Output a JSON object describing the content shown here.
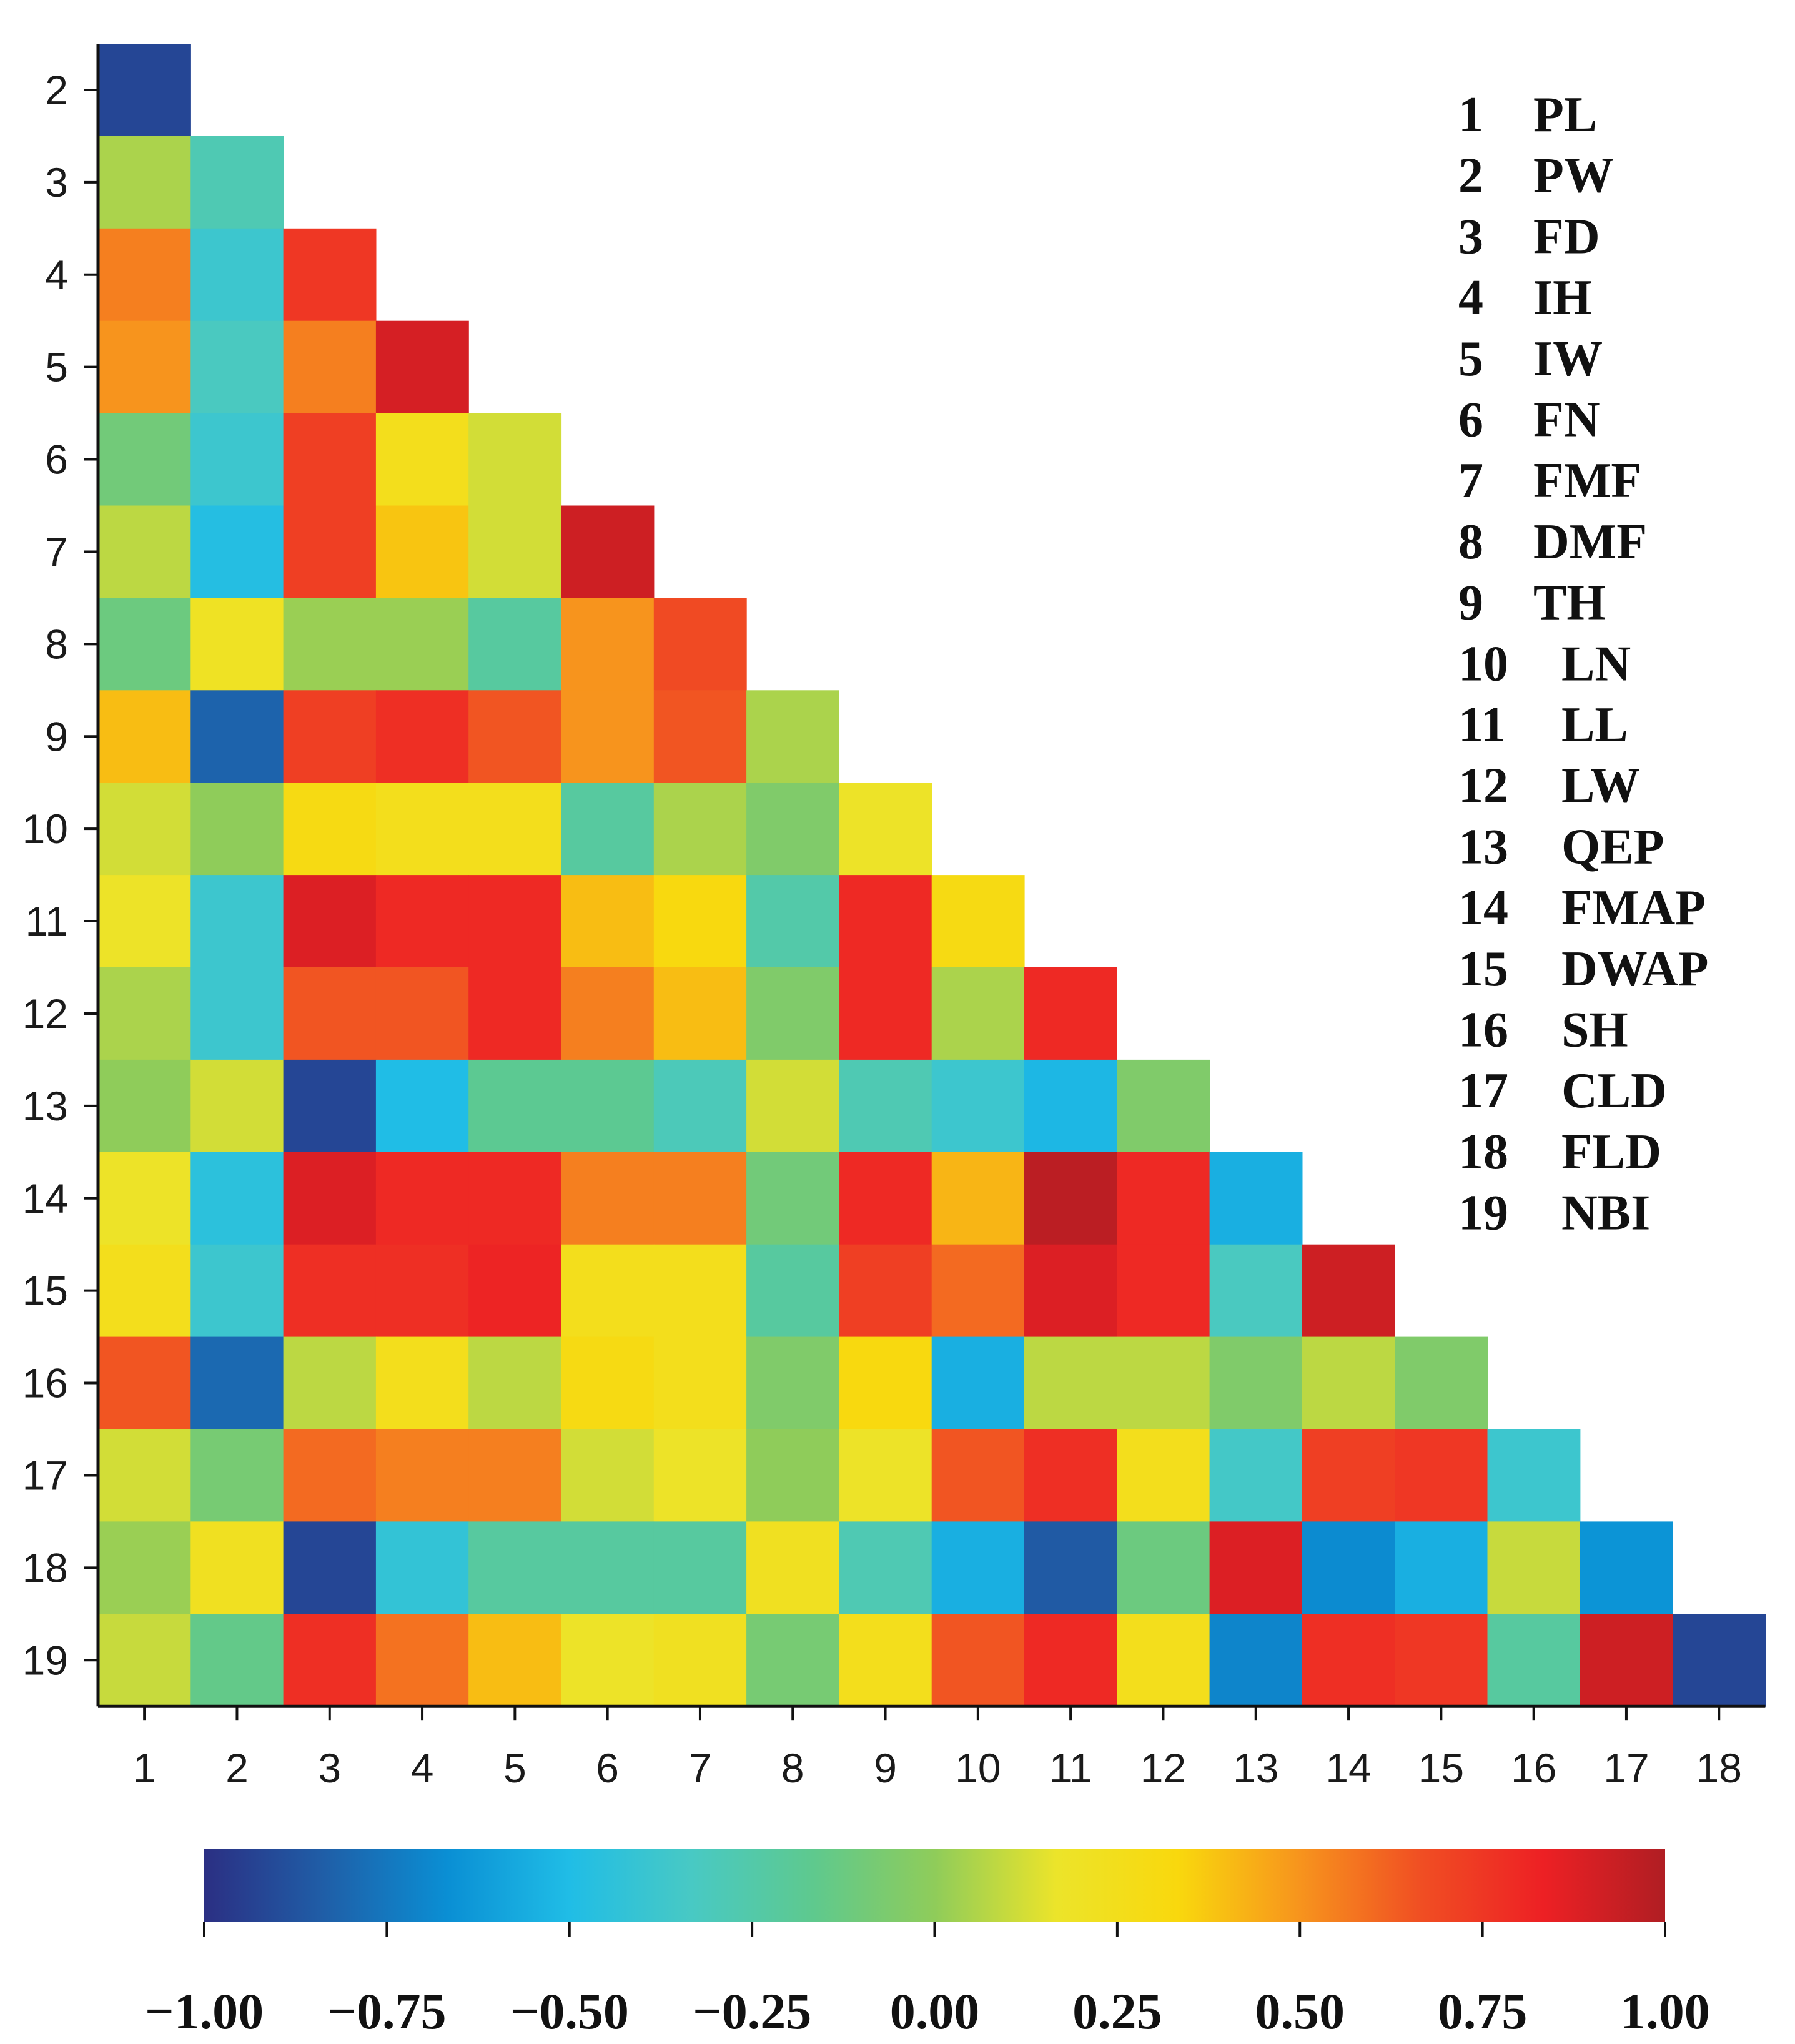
{
  "chart_data": {
    "type": "heatmap",
    "title": "",
    "xlabel": "",
    "ylabel": "",
    "x_ticks": [
      "1",
      "2",
      "3",
      "4",
      "5",
      "6",
      "7",
      "8",
      "9",
      "10",
      "11",
      "12",
      "13",
      "14",
      "15",
      "16",
      "17",
      "18"
    ],
    "y_ticks": [
      "2",
      "3",
      "4",
      "5",
      "6",
      "7",
      "8",
      "9",
      "10",
      "11",
      "12",
      "13",
      "14",
      "15",
      "16",
      "17",
      "18",
      "19"
    ],
    "values": [
      [
        -0.92
      ],
      [
        0.05,
        -0.28
      ],
      [
        0.55,
        -0.38,
        0.75
      ],
      [
        0.5,
        -0.32,
        0.55,
        0.9
      ],
      [
        -0.1,
        -0.38,
        0.72,
        0.25,
        0.12
      ],
      [
        0.08,
        -0.48,
        0.72,
        0.38,
        0.12,
        0.92
      ],
      [
        -0.12,
        0.2,
        0.02,
        0.02,
        -0.22,
        0.5,
        0.68
      ],
      [
        0.4,
        -0.82,
        0.72,
        0.78,
        0.65,
        0.5,
        0.65,
        0.05
      ],
      [
        0.12,
        0.0,
        0.3,
        0.25,
        0.25,
        -0.22,
        0.05,
        -0.05,
        0.18
      ],
      [
        0.18,
        -0.38,
        0.88,
        0.8,
        0.8,
        0.4,
        0.32,
        -0.25,
        0.8,
        0.3
      ],
      [
        0.05,
        -0.38,
        0.65,
        0.65,
        0.8,
        0.55,
        0.4,
        -0.05,
        0.8,
        0.05,
        0.8
      ],
      [
        0.0,
        0.12,
        -0.92,
        -0.5,
        -0.18,
        -0.18,
        -0.3,
        0.12,
        -0.28,
        -0.38,
        -0.52,
        -0.05
      ],
      [
        0.18,
        -0.45,
        0.88,
        0.8,
        0.8,
        0.55,
        0.55,
        -0.1,
        0.8,
        0.42,
        0.97,
        0.8,
        -0.55
      ],
      [
        0.25,
        -0.38,
        0.78,
        0.78,
        0.82,
        0.25,
        0.25,
        -0.22,
        0.72,
        0.6,
        0.88,
        0.8,
        -0.32,
        0.92
      ],
      [
        0.65,
        -0.8,
        0.08,
        0.25,
        0.08,
        0.3,
        0.25,
        -0.05,
        0.32,
        -0.55,
        0.08,
        0.08,
        -0.05,
        0.08,
        -0.05
      ],
      [
        0.12,
        -0.08,
        0.6,
        0.55,
        0.55,
        0.12,
        0.18,
        0.0,
        0.18,
        0.65,
        0.78,
        0.25,
        -0.35,
        0.72,
        0.75,
        -0.38
      ],
      [
        0.02,
        0.22,
        -0.92,
        -0.42,
        -0.22,
        -0.22,
        -0.22,
        0.22,
        -0.28,
        -0.55,
        -0.85,
        -0.12,
        0.88,
        -0.68,
        -0.55,
        0.1,
        -0.65
      ],
      [
        0.1,
        -0.15,
        0.78,
        0.58,
        0.4,
        0.18,
        0.22,
        -0.08,
        0.25,
        0.65,
        0.8,
        0.25,
        -0.7,
        0.78,
        0.75,
        -0.22,
        0.92,
        -0.92
      ]
    ],
    "colorbar": {
      "range": [
        -1.0,
        1.0
      ],
      "ticks": [
        "-1.00",
        "-0.75",
        "-0.50",
        "-0.25",
        "0.00",
        "0.25",
        "0.50",
        "0.75",
        "1.00"
      ],
      "colormap": [
        "#2b2f83",
        "#1f5fa8",
        "#0a8fd4",
        "#20bde6",
        "#48c9c4",
        "#5ec98e",
        "#8fcc5a",
        "#ece42a",
        "#f9d80d",
        "#f7941d",
        "#f04e23",
        "#ed2024",
        "#b01e23"
      ]
    },
    "legend": [
      {
        "num": "1",
        "abbr": "PL"
      },
      {
        "num": "2",
        "abbr": "PW"
      },
      {
        "num": "3",
        "abbr": "FD"
      },
      {
        "num": "4",
        "abbr": "IH"
      },
      {
        "num": "5",
        "abbr": "IW"
      },
      {
        "num": "6",
        "abbr": "FN"
      },
      {
        "num": "7",
        "abbr": "FMF"
      },
      {
        "num": "8",
        "abbr": "DMF"
      },
      {
        "num": "9",
        "abbr": "TH"
      },
      {
        "num": "10",
        "abbr": "LN"
      },
      {
        "num": "11",
        "abbr": "LL"
      },
      {
        "num": "12",
        "abbr": "LW"
      },
      {
        "num": "13",
        "abbr": "QEP"
      },
      {
        "num": "14",
        "abbr": "FMAP"
      },
      {
        "num": "15",
        "abbr": "DWAP"
      },
      {
        "num": "16",
        "abbr": "SH"
      },
      {
        "num": "17",
        "abbr": "CLD"
      },
      {
        "num": "18",
        "abbr": "FLD"
      },
      {
        "num": "19",
        "abbr": "NBI"
      }
    ]
  }
}
